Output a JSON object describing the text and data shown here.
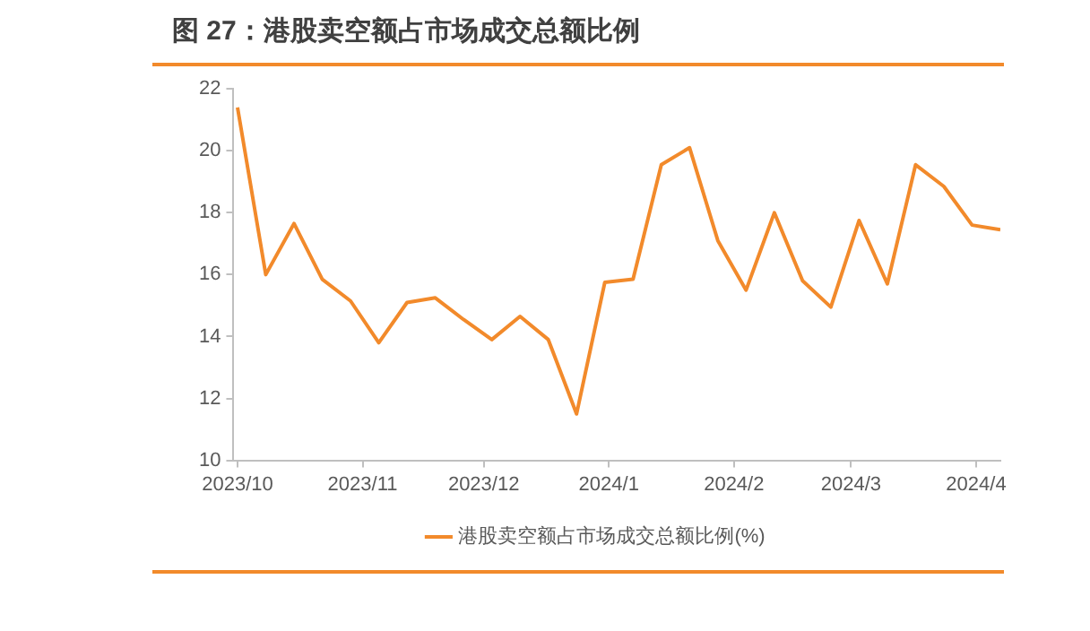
{
  "chart_data": {
    "type": "line",
    "title": "图 27：港股卖空额占市场成交总额比例",
    "x": [
      "2023-10-01",
      "2023-10-08",
      "2023-10-15",
      "2023-10-22",
      "2023-10-29",
      "2023-11-05",
      "2023-11-12",
      "2023-11-19",
      "2023-11-26",
      "2023-12-03",
      "2023-12-10",
      "2023-12-17",
      "2023-12-24",
      "2023-12-31",
      "2024-01-07",
      "2024-01-14",
      "2024-01-21",
      "2024-01-28",
      "2024-02-04",
      "2024-02-11",
      "2024-02-18",
      "2024-02-25",
      "2024-03-03",
      "2024-03-10",
      "2024-03-17",
      "2024-03-24",
      "2024-03-31",
      "2024-04-07"
    ],
    "series": [
      {
        "name": "港股卖空额占市场成交总额比例(%)",
        "color": "#f28a2b",
        "values": [
          21.4,
          16.0,
          17.65,
          15.85,
          15.15,
          13.8,
          15.1,
          15.25,
          14.55,
          13.9,
          14.65,
          13.9,
          11.5,
          15.75,
          15.85,
          19.55,
          20.1,
          17.1,
          15.5,
          18.0,
          15.8,
          14.95,
          17.75,
          15.7,
          19.55,
          18.85,
          17.6,
          17.45
        ]
      }
    ],
    "xlim": [
      "2023-09-30",
      "2024-04-07"
    ],
    "xticks": [
      {
        "value": "2023-10-01",
        "label": "2023/10"
      },
      {
        "value": "2023-11-01",
        "label": "2023/11"
      },
      {
        "value": "2023-12-01",
        "label": "2023/12"
      },
      {
        "value": "2024-01-01",
        "label": "2024/1"
      },
      {
        "value": "2024-02-01",
        "label": "2024/2"
      },
      {
        "value": "2024-03-01",
        "label": "2024/3"
      },
      {
        "value": "2024-04-01",
        "label": "2024/4"
      }
    ],
    "ylim": [
      10,
      22
    ],
    "yticks": [
      10,
      12,
      14,
      16,
      18,
      20,
      22
    ],
    "grid": false,
    "legend": "bottom",
    "marker": "none",
    "line_style": "solid"
  }
}
